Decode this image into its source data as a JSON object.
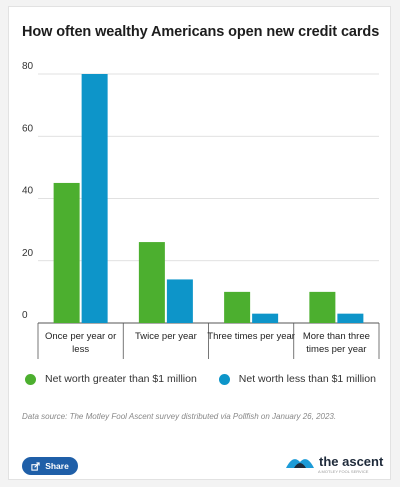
{
  "page": {
    "title": "How often wealthy Americans open new credit cards"
  },
  "colors": {
    "green": "#4caf2f",
    "blue": "#0d95c9",
    "grid": "#d7d7d7",
    "axis": "#555555"
  },
  "chart_data": {
    "type": "bar",
    "title": "How often wealthy Americans open new credit cards",
    "categories": [
      [
        "Once per year or",
        "less"
      ],
      [
        "Twice per year"
      ],
      [
        "Three times per year"
      ],
      [
        "More than three",
        "times per year"
      ]
    ],
    "series": [
      {
        "name": "Net worth greater than $1 million",
        "color": "#4caf2f",
        "values": [
          45,
          26,
          10,
          10
        ]
      },
      {
        "name": "Net worth less than $1 million",
        "color": "#0d95c9",
        "values": [
          80,
          14,
          3,
          3
        ]
      }
    ],
    "yticks": [
      0,
      20,
      40,
      60,
      80
    ],
    "ylim": [
      0,
      80
    ],
    "grid": true,
    "legend": "bottom"
  },
  "legend": {
    "items": [
      {
        "label": "Net worth greater than $1 million",
        "color": "#4caf2f"
      },
      {
        "label": "Net worth less than $1 million",
        "color": "#0d95c9"
      }
    ]
  },
  "source": "Data source: The Motley Fool Ascent survey distributed via Pollfish on January 26, 2023.",
  "share_label": "Share",
  "brand": {
    "name": "the ascent",
    "tagline": "A MOTLEY FOOL SERVICE"
  }
}
